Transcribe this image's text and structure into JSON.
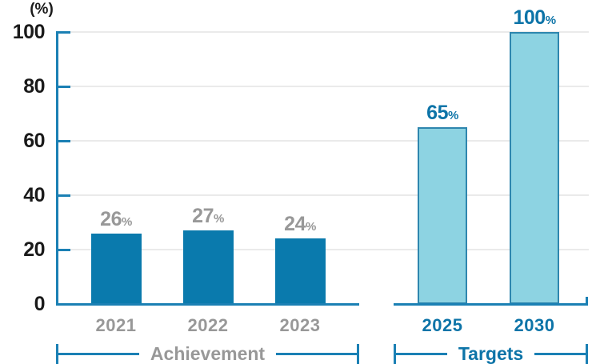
{
  "chart_data": {
    "type": "bar",
    "title": "",
    "ylabel": "(%)",
    "xlabel": "",
    "ylim": [
      0,
      100
    ],
    "yticks": [
      0,
      20,
      40,
      60,
      80,
      100
    ],
    "grid": true,
    "legend": "none",
    "groups": [
      {
        "name": "Achievement",
        "style": "solid",
        "bar_fill": "#0a7aad",
        "bar_border": "none",
        "text_color": "#989898",
        "bars": [
          {
            "category": "2021",
            "value": 26,
            "value_label": "26",
            "unit": "%"
          },
          {
            "category": "2022",
            "value": 27,
            "value_label": "27",
            "unit": "%"
          },
          {
            "category": "2023",
            "value": 24,
            "value_label": "24",
            "unit": "%"
          }
        ]
      },
      {
        "name": "Targets",
        "style": "outlined",
        "bar_fill": "#8dd3e2",
        "bar_border": "#2e86ae",
        "text_color": "#0d74a8",
        "bars": [
          {
            "category": "2025",
            "value": 65,
            "value_label": "65",
            "unit": "%"
          },
          {
            "category": "2030",
            "value": 100,
            "value_label": "100",
            "unit": "%"
          }
        ]
      }
    ]
  },
  "colors": {
    "axis_blue": "#1b80b4",
    "gridline": "#eaeaea",
    "tick_text": "#1a1a1a",
    "achievement_bar": "#0a7aad",
    "targets_bar_fill": "#8dd3e2",
    "targets_bar_border": "#2e86ae",
    "gray_text": "#989898",
    "blue_text": "#0d74a8"
  }
}
